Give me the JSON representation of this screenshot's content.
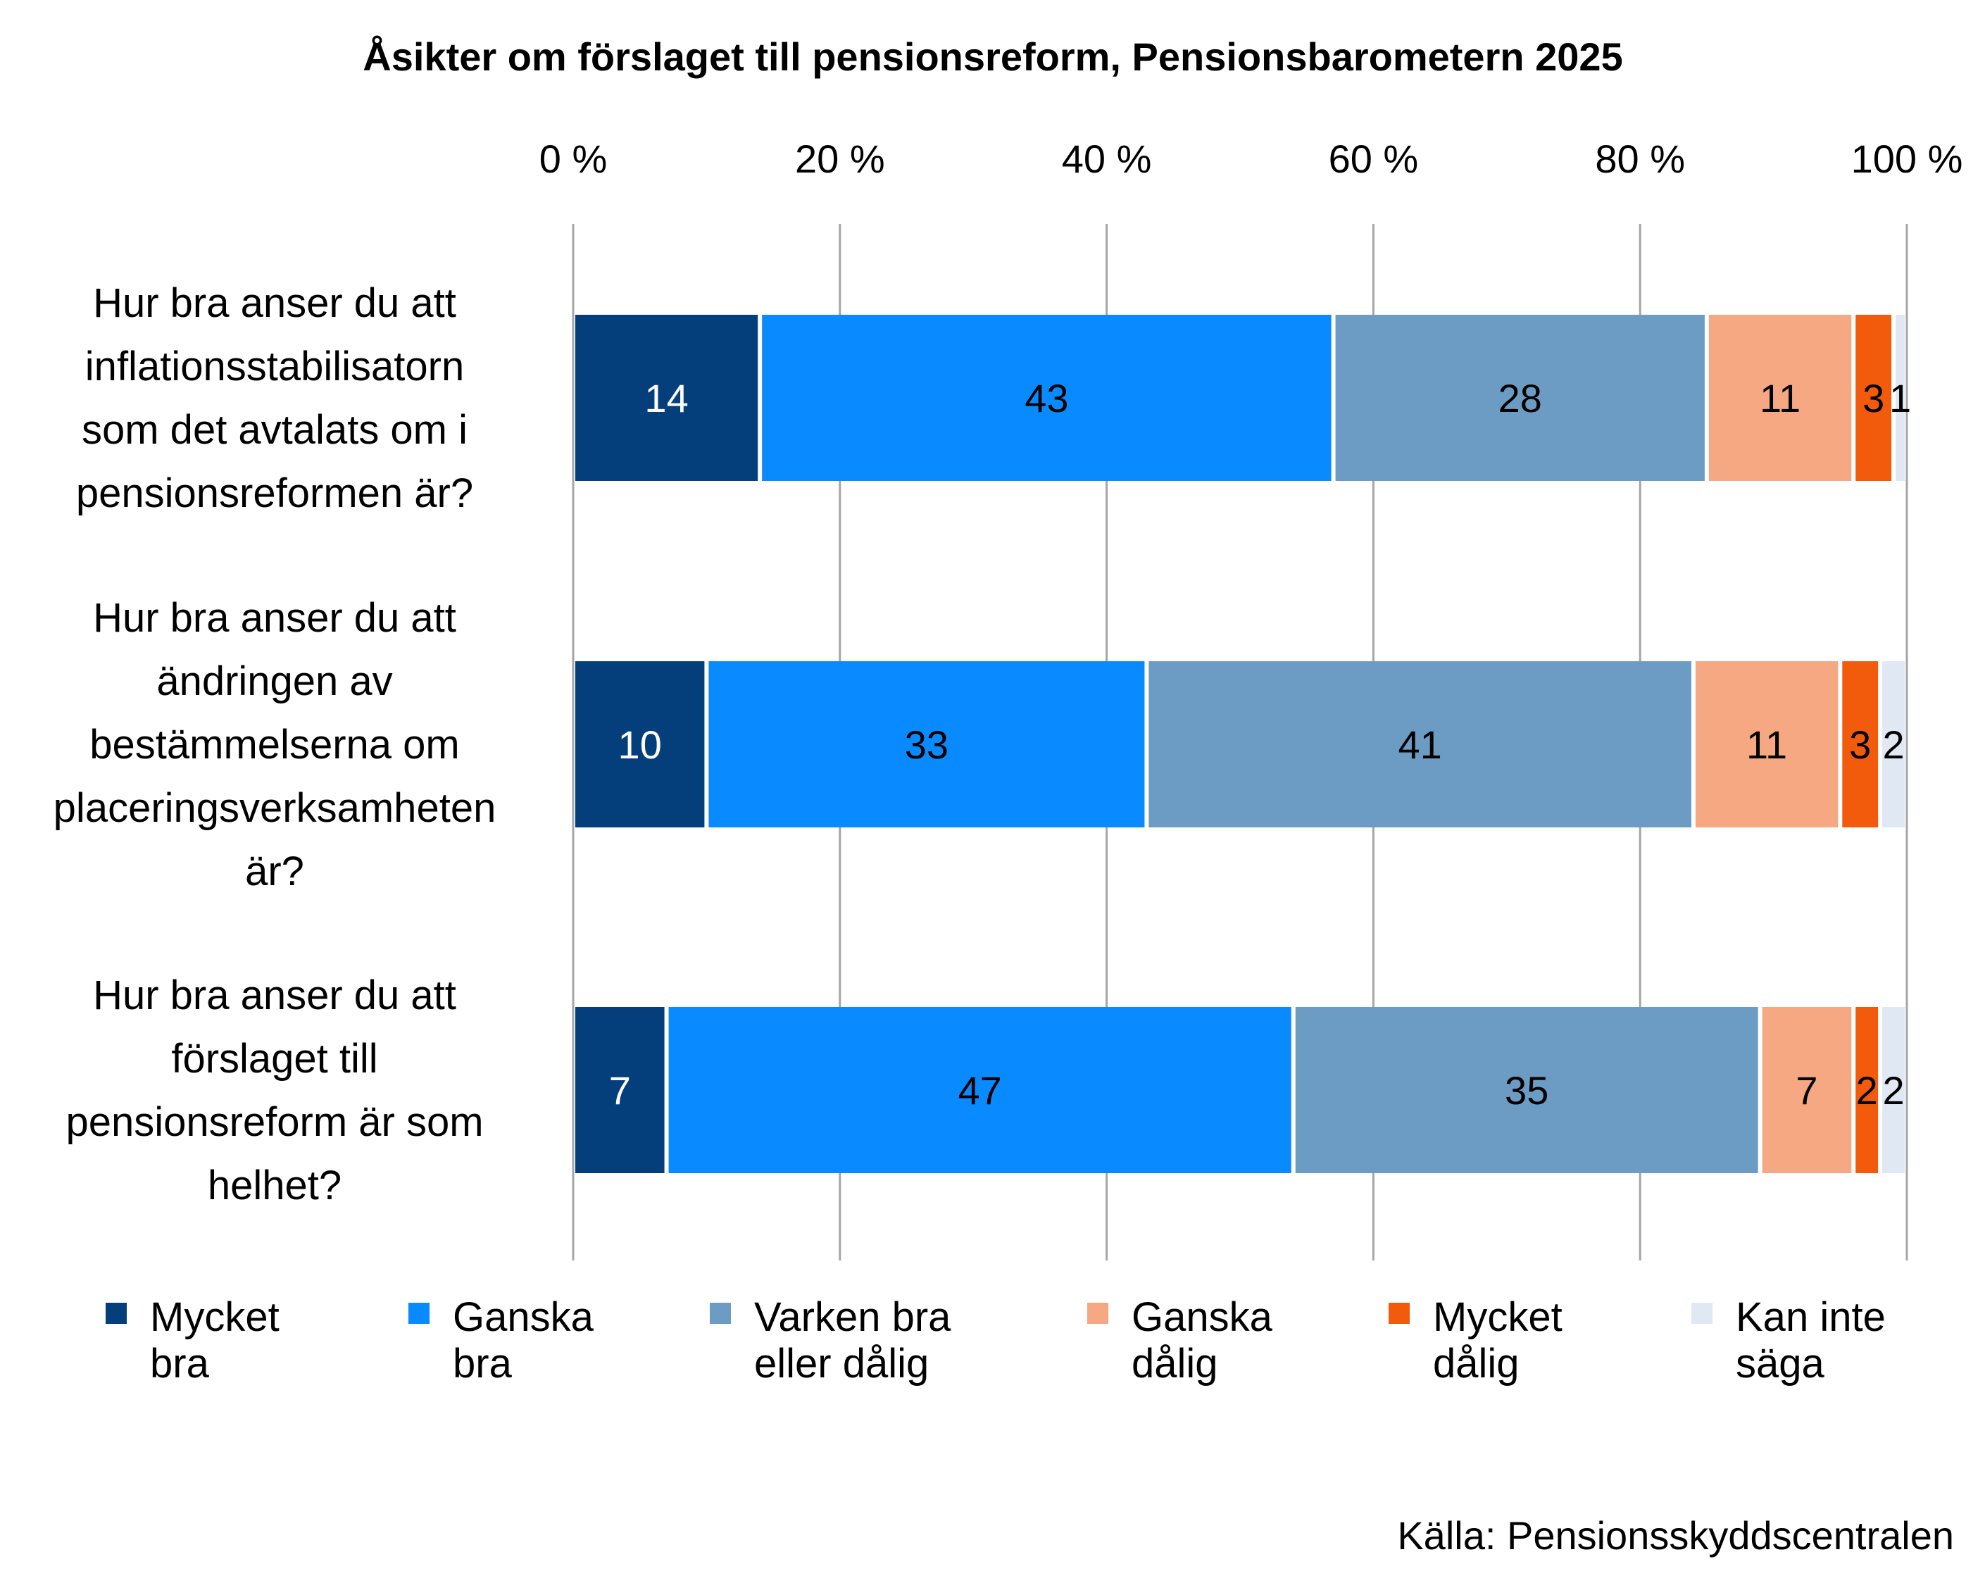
{
  "chart_data": {
    "type": "bar",
    "orientation": "horizontal",
    "stacked": true,
    "title": "Åsikter om förslaget till pensionsreform, Pensionsbarometern  2025",
    "x_ticks": [
      "0 %",
      "20 %",
      "40 %",
      "60 %",
      "80 %",
      "100 %"
    ],
    "xlim": [
      0,
      100
    ],
    "grid": true,
    "legend_position": "bottom",
    "categories": [
      [
        "Hur bra anser du att",
        "inflationsstabilisatorn",
        "som det avtalats om i",
        "pensionsreformen är?"
      ],
      [
        "Hur bra anser du att",
        "ändringen av",
        "bestämmelserna om",
        "placeringsverksamheten",
        "är?"
      ],
      [
        "Hur bra anser du att",
        "förslaget till",
        "pensionsreform är som",
        "helhet?"
      ]
    ],
    "series": [
      {
        "name": "Mycket bra",
        "legend_lines": [
          "Mycket",
          "bra"
        ],
        "color": "#053F7B",
        "label_color": "#ffffff",
        "values": [
          14,
          10,
          7
        ]
      },
      {
        "name": "Ganska bra",
        "legend_lines": [
          "Ganska",
          "bra"
        ],
        "color": "#0A8AFF",
        "label_color": "#000000",
        "values": [
          43,
          33,
          47
        ]
      },
      {
        "name": "Varken bra eller dålig",
        "legend_lines": [
          "Varken bra",
          "eller dålig"
        ],
        "color": "#6C9BC4",
        "label_color": "#000000",
        "values": [
          28,
          41,
          35
        ]
      },
      {
        "name": "Ganska dålig",
        "legend_lines": [
          "Ganska",
          "dålig"
        ],
        "color": "#F5A882",
        "label_color": "#000000",
        "values": [
          11,
          11,
          7
        ]
      },
      {
        "name": "Mycket dålig",
        "legend_lines": [
          "Mycket",
          "dålig"
        ],
        "color": "#F25A0C",
        "label_color": "#000000",
        "values": [
          3,
          3,
          2
        ]
      },
      {
        "name": "Kan inte säga",
        "legend_lines": [
          "Kan inte",
          "säga"
        ],
        "color": "#DFE8F3",
        "label_color": "#000000",
        "values": [
          1,
          2,
          2
        ]
      }
    ],
    "source": "Källa: Pensionsskyddscentralen"
  }
}
